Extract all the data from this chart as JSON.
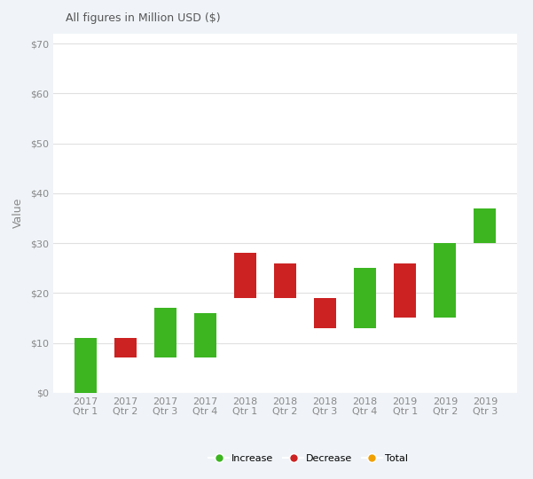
{
  "subtitle": "All figures in Million USD ($)",
  "ylabel": "Value",
  "yticks": [
    0,
    10,
    20,
    30,
    40,
    50,
    60,
    70
  ],
  "ylim": [
    0,
    72
  ],
  "ytick_labels": [
    "$0",
    "$10",
    "$20",
    "$30",
    "$40",
    "$50",
    "$60",
    "$70"
  ],
  "categories": [
    "2017\nQtr 1",
    "2017\nQtr 2",
    "2017\nQtr 3",
    "2017\nQtr 4",
    "2018\nQtr 1",
    "2018\nQtr 2",
    "2018\nQtr 3",
    "2018\nQtr 4",
    "2019\nQtr 1",
    "2019\nQtr 2",
    "2019\nQtr 3"
  ],
  "bar_bottoms": [
    0,
    7,
    7,
    7,
    19,
    19,
    13,
    13,
    15,
    15,
    30
  ],
  "bar_heights": [
    11,
    4,
    10,
    9,
    9,
    7,
    6,
    12,
    11,
    15,
    7
  ],
  "bar_types": [
    "increase",
    "decrease",
    "increase",
    "increase",
    "decrease",
    "decrease",
    "decrease",
    "increase",
    "decrease",
    "increase",
    "increase"
  ],
  "color_increase": "#3cb521",
  "color_decrease": "#cc2222",
  "color_total": "#f0a000",
  "background_color": "#ffffff",
  "chart_bg": "#ffffff",
  "grid_color": "#e0e0e0",
  "bar_width": 0.55,
  "legend_items": [
    "Increase",
    "Decrease",
    "Total"
  ],
  "legend_colors": [
    "#3cb521",
    "#cc2222",
    "#f0a000"
  ]
}
